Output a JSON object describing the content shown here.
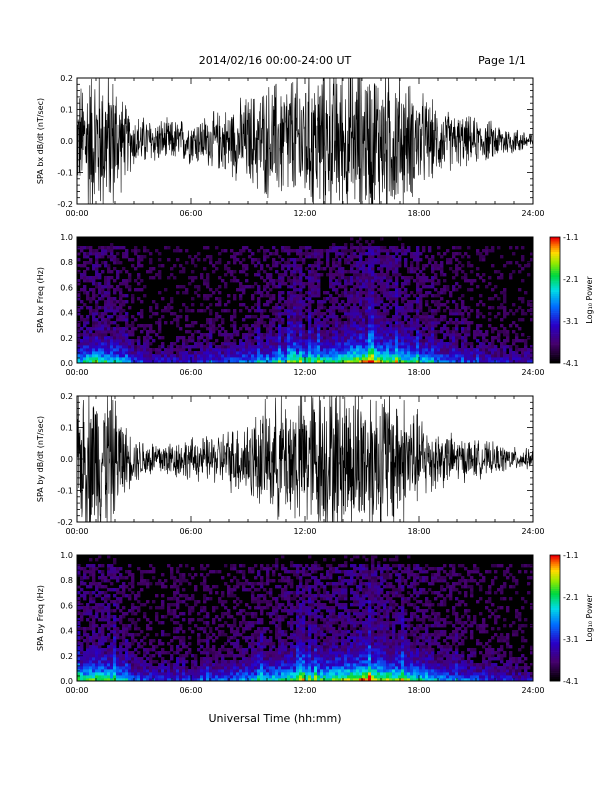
{
  "header": {
    "title": "2014/02/16  00:00-24:00 UT",
    "page": "Page 1/1"
  },
  "xlabel": "Universal Time (hh:mm)",
  "x_ticks": [
    "00:00",
    "06:00",
    "12:00",
    "18:00",
    "24:00"
  ],
  "colorbar": {
    "label": "Log₁₀ Power",
    "ticks": [
      "-1.1",
      "-2.1",
      "-3.1",
      "-4.1"
    ],
    "range": [
      -4.1,
      -1.1
    ]
  },
  "chart_data": [
    {
      "type": "line",
      "ylabel": "SPA bx dB/dt (nT/sec)",
      "xlim": [
        "00:00",
        "24:00"
      ],
      "ylim": [
        -0.2,
        0.2
      ],
      "y_ticks": [
        "-0.2",
        "-0.1",
        "0.0",
        "0.1",
        "0.2"
      ],
      "envelope": {
        "x_hours": [
          0,
          0.5,
          1,
          1.5,
          2,
          2.5,
          3,
          4,
          5,
          6,
          7,
          8,
          9,
          10,
          11,
          12,
          13,
          14,
          14.5,
          15,
          15.5,
          16,
          16.5,
          17,
          18,
          19,
          20,
          21,
          22,
          23,
          24
        ],
        "amplitude": [
          0.12,
          0.2,
          0.2,
          0.2,
          0.18,
          0.1,
          0.07,
          0.06,
          0.055,
          0.06,
          0.07,
          0.09,
          0.12,
          0.15,
          0.17,
          0.19,
          0.2,
          0.2,
          0.2,
          0.2,
          0.2,
          0.2,
          0.2,
          0.18,
          0.13,
          0.09,
          0.07,
          0.06,
          0.05,
          0.035,
          0.025
        ]
      }
    },
    {
      "type": "heatmap",
      "ylabel": "SPA bx Freq (Hz)",
      "xlim": [
        "00:00",
        "24:00"
      ],
      "ylim": [
        0.0,
        1.0
      ],
      "y_ticks": [
        "0.0",
        "0.2",
        "0.4",
        "0.6",
        "0.8",
        "1.0"
      ],
      "activity": {
        "x_hours": [
          0,
          1,
          2,
          3,
          4,
          6,
          8,
          9,
          10,
          11,
          12,
          13,
          14,
          15,
          15.5,
          16,
          17,
          18,
          19,
          20,
          21,
          22,
          23,
          24
        ],
        "level": [
          0.6,
          0.8,
          0.7,
          0.45,
          0.35,
          0.35,
          0.45,
          0.55,
          0.6,
          0.7,
          0.75,
          0.75,
          0.85,
          1.0,
          1.0,
          0.9,
          0.8,
          0.7,
          0.55,
          0.45,
          0.4,
          0.35,
          0.3,
          0.3
        ]
      }
    },
    {
      "type": "line",
      "ylabel": "SPA by dB/dt (nT/sec)",
      "xlim": [
        "00:00",
        "24:00"
      ],
      "ylim": [
        -0.2,
        0.2
      ],
      "y_ticks": [
        "-0.2",
        "-0.1",
        "0.0",
        "0.1",
        "0.2"
      ],
      "envelope": {
        "x_hours": [
          0,
          0.5,
          1,
          1.5,
          2,
          2.5,
          3,
          4,
          5,
          6,
          7,
          8,
          9,
          10,
          11,
          12,
          13,
          14,
          14.5,
          15,
          15.5,
          16,
          16.5,
          17,
          18,
          19,
          20,
          21,
          22,
          23,
          24
        ],
        "amplitude": [
          0.15,
          0.2,
          0.2,
          0.2,
          0.17,
          0.09,
          0.06,
          0.05,
          0.05,
          0.055,
          0.06,
          0.08,
          0.11,
          0.14,
          0.17,
          0.19,
          0.2,
          0.2,
          0.2,
          0.2,
          0.2,
          0.2,
          0.2,
          0.18,
          0.12,
          0.08,
          0.06,
          0.05,
          0.04,
          0.03,
          0.025
        ]
      }
    },
    {
      "type": "heatmap",
      "ylabel": "SPA by Freq (Hz)",
      "xlim": [
        "00:00",
        "24:00"
      ],
      "ylim": [
        0.0,
        1.0
      ],
      "y_ticks": [
        "0.0",
        "0.2",
        "0.4",
        "0.6",
        "0.8",
        "1.0"
      ],
      "activity": {
        "x_hours": [
          0,
          1,
          2,
          3,
          4,
          6,
          8,
          9,
          10,
          11,
          12,
          13,
          14,
          15,
          15.5,
          16,
          17,
          18,
          19,
          20,
          21,
          22,
          23,
          24
        ],
        "level": [
          0.7,
          0.85,
          0.75,
          0.5,
          0.4,
          0.4,
          0.5,
          0.6,
          0.65,
          0.75,
          0.8,
          0.8,
          0.9,
          1.0,
          1.0,
          0.95,
          0.85,
          0.75,
          0.6,
          0.5,
          0.45,
          0.4,
          0.35,
          0.3
        ]
      }
    }
  ]
}
